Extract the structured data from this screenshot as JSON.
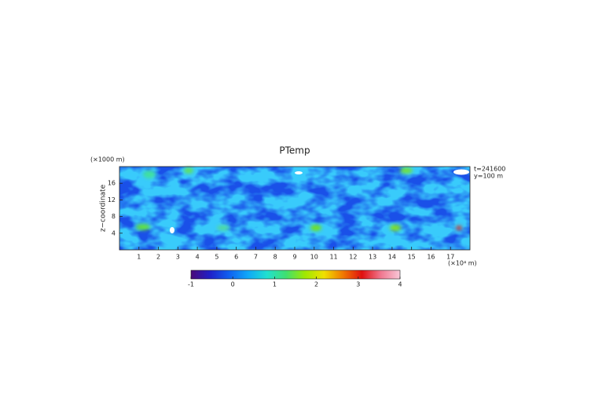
{
  "chart_data": {
    "type": "contour",
    "title": "PTemp",
    "ylabel": "z−coordinate",
    "yunit": "(×1000 m)",
    "xunit": "(×10⁴ m)",
    "annotations": [
      "t=241600",
      "y=100 m"
    ],
    "xlim": [
      0,
      18
    ],
    "xticks": [
      1,
      2,
      3,
      4,
      5,
      6,
      7,
      8,
      9,
      10,
      11,
      12,
      13,
      14,
      15,
      16,
      17
    ],
    "ylim": [
      0,
      20
    ],
    "yticks": [
      4,
      8,
      12,
      16
    ],
    "colorbar": {
      "lim": [
        -1,
        4
      ],
      "ticks": [
        -1,
        0,
        1,
        2,
        3,
        4
      ],
      "colors": [
        "#4a0a78",
        "#2020c8",
        "#1060f0",
        "#10a8f8",
        "#20e0d0",
        "#40e070",
        "#a0e800",
        "#f0e000",
        "#f07800",
        "#e01010",
        "#f07890",
        "#f8c8d8"
      ]
    }
  }
}
